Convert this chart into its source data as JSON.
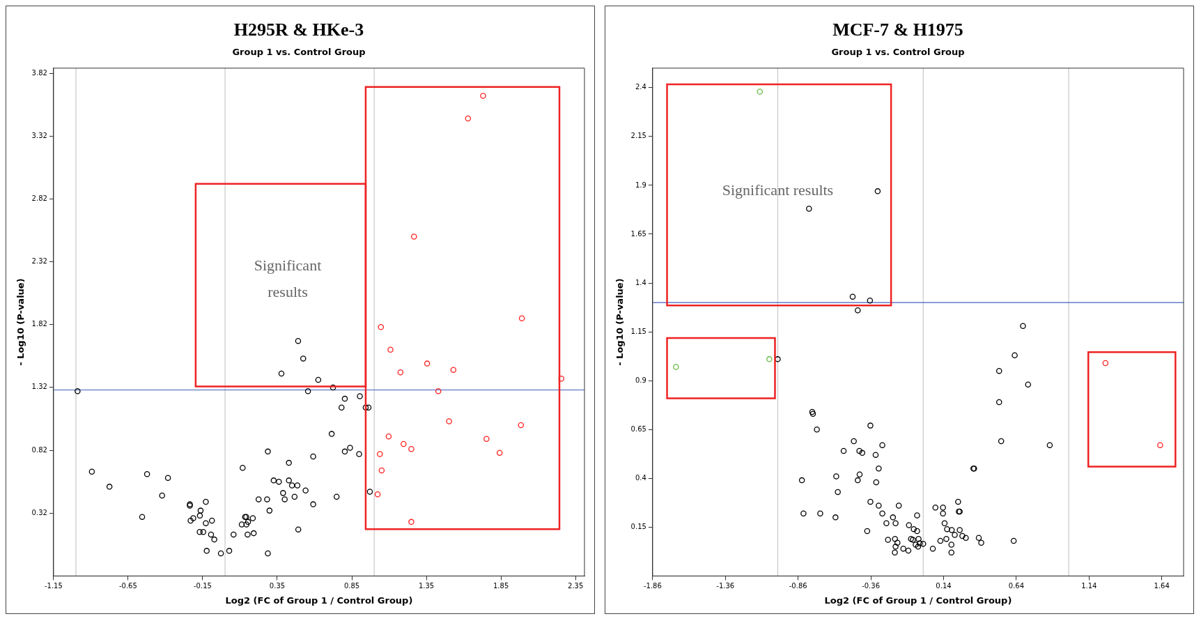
{
  "chart_data": [
    {
      "type": "scatter",
      "title": "H295R & HKe-3",
      "subtitle": "Group 1 vs. Control Group",
      "xlabel": "Log2 (FC of Group 1 / Control Group)",
      "ylabel": "- Log10 (P-value)",
      "annotations": [
        "Significant results"
      ],
      "xlim": [
        -1.15,
        2.41
      ],
      "ylim": [
        -0.18,
        3.86
      ],
      "xticks": [
        -1.15,
        -0.65,
        -0.15,
        0.35,
        0.85,
        1.35,
        1.85,
        2.35
      ],
      "yticks": [
        0.32,
        0.82,
        1.32,
        1.82,
        2.32,
        2.82,
        3.32,
        3.82
      ],
      "grid": false,
      "legend": false,
      "marker": "circle",
      "ref_lines": [
        {
          "axis": "x",
          "value": -1,
          "label": null,
          "color": "#c8c8c8"
        },
        {
          "axis": "x",
          "value": 0,
          "label": null,
          "color": "#c8c8c8"
        },
        {
          "axis": "x",
          "value": 1,
          "label": null,
          "color": "#c8c8c8"
        },
        {
          "axis": "y",
          "value": 1.3,
          "label": null,
          "color": "#4060c0"
        }
      ],
      "series": [
        {
          "color": "#000000",
          "x": [
            -0.989,
            0.49,
            0.524,
            0.378,
            0.625,
            0.724,
            0.556,
            0.803,
            0.904,
            0.781,
            0.715,
            0.803,
            0.838,
            0.899,
            0.591,
            0.428,
            0.287,
            0.118,
            -0.893,
            -0.775,
            -0.523,
            -0.383,
            -0.422,
            -0.556,
            -0.236,
            -0.236,
            -0.129,
            -0.164,
            -0.169,
            -0.213,
            -0.231,
            -0.129,
            -0.088,
            -0.17,
            -0.146,
            -0.094,
            -0.072,
            -0.123,
            -0.028,
            0.028,
            0.057,
            0.112,
            0.134,
            0.142,
            0.154,
            0.186,
            0.143,
            0.151,
            0.192,
            0.225,
            0.282,
            0.298,
            0.287,
            0.326,
            0.361,
            0.428,
            0.449,
            0.485,
            0.389,
            0.4,
            0.466,
            0.54,
            0.591,
            0.748,
            0.491,
            0.943,
            0.962,
            0.971
          ],
          "values": [
            1.29,
            1.69,
            1.55,
            1.43,
            1.38,
            1.32,
            1.29,
            1.23,
            1.25,
            1.16,
            0.95,
            0.81,
            0.84,
            0.79,
            0.77,
            0.72,
            0.81,
            0.68,
            0.65,
            0.53,
            0.63,
            0.6,
            0.46,
            0.29,
            0.39,
            0.38,
            0.41,
            0.34,
            0.3,
            0.28,
            0.26,
            0.24,
            0.26,
            0.17,
            0.17,
            0.15,
            0.11,
            0.02,
            0.0,
            0.02,
            0.15,
            0.23,
            0.29,
            0.29,
            0.25,
            0.28,
            0.23,
            0.15,
            0.16,
            0.43,
            0.43,
            0.34,
            0.0,
            0.58,
            0.57,
            0.58,
            0.54,
            0.54,
            0.48,
            0.43,
            0.45,
            0.5,
            0.39,
            0.45,
            0.19,
            1.16,
            1.16,
            0.49
          ]
        },
        {
          "color": "#ff2020",
          "x": [
            1.73,
            1.629,
            1.267,
            1.99,
            1.045,
            1.109,
            1.176,
            1.355,
            1.531,
            2.255,
            1.43,
            1.502,
            1.984,
            1.097,
            1.197,
            1.249,
            1.038,
            1.753,
            1.841,
            1.05,
            1.023,
            1.249
          ],
          "values": [
            3.64,
            3.46,
            2.52,
            1.87,
            1.8,
            1.62,
            1.44,
            1.51,
            1.46,
            1.39,
            1.29,
            1.05,
            1.02,
            0.93,
            0.87,
            0.83,
            0.79,
            0.91,
            0.8,
            0.66,
            0.47,
            0.25
          ]
        }
      ]
    },
    {
      "type": "scatter",
      "title": "MCF-7 & H1975",
      "subtitle": "Group 1 vs. Control Group",
      "xlabel": "Log2 (FC of Group 1 / Control Group)",
      "ylabel": "- Log10 (P-value)",
      "annotations": [
        "Significant results"
      ],
      "xlim": [
        -1.86,
        1.79
      ],
      "ylim": [
        -0.1,
        2.5
      ],
      "xticks": [
        -1.86,
        -1.36,
        -0.86,
        -0.36,
        0.14,
        0.64,
        1.14,
        1.64
      ],
      "yticks": [
        0.15,
        0.4,
        0.65,
        0.9,
        1.15,
        1.4,
        1.65,
        1.9,
        2.15,
        2.4
      ],
      "grid": false,
      "legend": false,
      "marker": "circle",
      "ref_lines": [
        {
          "axis": "x",
          "value": -1,
          "label": null,
          "color": "#c8c8c8"
        },
        {
          "axis": "x",
          "value": 0,
          "label": null,
          "color": "#c8c8c8"
        },
        {
          "axis": "x",
          "value": 1,
          "label": null,
          "color": "#c8c8c8"
        },
        {
          "axis": "y",
          "value": 1.3,
          "label": null,
          "color": "#4060c0"
        }
      ],
      "series": [
        {
          "color": "#000000",
          "x": [
            -0.313,
            -0.785,
            -0.485,
            -0.366,
            -0.45,
            -1.0,
            -0.763,
            -0.758,
            -0.731,
            -0.363,
            -0.477,
            -0.281,
            -0.547,
            -0.439,
            -0.419,
            -0.327,
            -0.306,
            -0.437,
            -0.598,
            -0.45,
            -0.323,
            -0.834,
            -0.587,
            -0.363,
            -0.306,
            -0.168,
            -0.823,
            -0.708,
            -0.603,
            -0.281,
            -0.208,
            -0.253,
            -0.19,
            -0.385,
            -0.098,
            -0.042,
            -0.065,
            -0.042,
            -0.242,
            -0.194,
            -0.177,
            -0.19,
            -0.195,
            -0.137,
            -0.102,
            -0.084,
            -0.071,
            -0.052,
            -0.035,
            -0.032,
            0.686,
            0.629,
            0.522,
            0.721,
            0.522,
            0.536,
            0.87,
            0.345,
            0.35,
            0.24,
            0.084,
            0.136,
            0.136,
            0.245,
            0.251,
            -0.024,
            0.0,
            0.147,
            0.164,
            0.196,
            0.251,
            0.217,
            0.269,
            0.293,
            0.159,
            0.118,
            0.194,
            0.066,
            0.194,
            0.382,
            0.399,
            0.622
          ],
          "values": [
            1.87,
            1.78,
            1.33,
            1.31,
            1.26,
            1.01,
            0.74,
            0.73,
            0.65,
            0.67,
            0.59,
            0.57,
            0.54,
            0.54,
            0.53,
            0.52,
            0.45,
            0.42,
            0.41,
            0.39,
            0.38,
            0.39,
            0.33,
            0.28,
            0.26,
            0.26,
            0.22,
            0.22,
            0.2,
            0.22,
            0.2,
            0.17,
            0.17,
            0.13,
            0.16,
            0.21,
            0.14,
            0.13,
            0.085,
            0.09,
            0.07,
            0.05,
            0.02,
            0.04,
            0.03,
            0.09,
            0.085,
            0.06,
            0.05,
            0.09,
            1.18,
            1.03,
            0.95,
            0.88,
            0.79,
            0.59,
            0.57,
            0.45,
            0.45,
            0.28,
            0.25,
            0.25,
            0.22,
            0.23,
            0.23,
            0.067,
            0.065,
            0.17,
            0.14,
            0.135,
            0.135,
            0.11,
            0.105,
            0.095,
            0.09,
            0.08,
            0.06,
            0.04,
            0.02,
            0.095,
            0.07,
            0.08
          ]
        },
        {
          "color": "#66bb44",
          "x": [
            -1.123,
            -1.7,
            -1.058
          ],
          "values": [
            2.38,
            0.97,
            1.01
          ]
        },
        {
          "color": "#ff2020",
          "x": [
            1.253,
            1.629
          ],
          "values": [
            0.99,
            0.57
          ]
        }
      ]
    }
  ]
}
